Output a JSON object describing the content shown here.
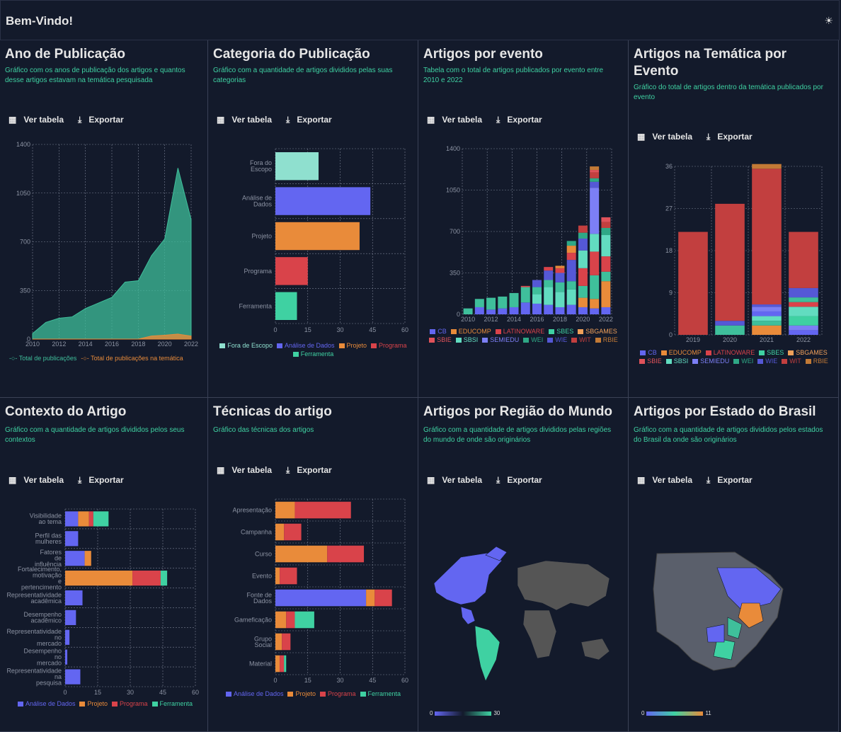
{
  "header": {
    "title": "Bem-Vindo!"
  },
  "actions": {
    "view_table": "Ver tabela",
    "export": "Exportar"
  },
  "colors": {
    "background": "#131a2b",
    "accent_desc": "#3fd1a2",
    "teal": "#3fbf9b",
    "orange": "#e98b3a",
    "blue": "#6366f1",
    "red": "#d9434a",
    "mint": "#8fe0cf"
  },
  "cards": [
    {
      "title": "Ano de Publicação",
      "desc": "Gráfico com os anos de publicação dos artigos e quantos desse artigos estavam na temática pesquisada"
    },
    {
      "title": "Categoria do Publicação",
      "desc": "Gráfico com a quantidade de artigos divididos pelas suas categorias"
    },
    {
      "title": "Artigos por evento",
      "desc": "Tabela com o total de artigos publicados por evento entre 2010 e 2022"
    },
    {
      "title": "Artigos na Temática por Evento",
      "desc": "Gráfico do total de artigos dentro da temática publicados por evento"
    },
    {
      "title": "Contexto do Artigo",
      "desc": "Gráfico com a quantidade de artigos divididos pelos seus contextos"
    },
    {
      "title": "Técnicas do artigo",
      "desc": "Gráfico das técnicas dos artigos"
    },
    {
      "title": "Artigos por Região do Mundo",
      "desc": "Gráfico com a quantidade de artigos divididos pelas regiões do mundo de onde são originários"
    },
    {
      "title": "Artigos por Estado do Brasil",
      "desc": "Gráfico com a quantidade de artigos divididos pelos estados do Brasil da onde são originários"
    }
  ],
  "maps": {
    "world_scale": [
      "0",
      "30"
    ],
    "brazil_scale": [
      "0",
      "11"
    ]
  },
  "chart_data": [
    {
      "type": "area",
      "x": [
        2010,
        2011,
        2012,
        2013,
        2014,
        2015,
        2016,
        2017,
        2018,
        2019,
        2020,
        2021,
        2022
      ],
      "x_ticks": [
        "2010",
        "2012",
        "2014",
        "2016",
        "2018",
        "2020",
        "2022"
      ],
      "y_ticks": [
        "0",
        "350",
        "700",
        "1050",
        "1400"
      ],
      "ylim": [
        0,
        1400
      ],
      "series": [
        {
          "name": "Total de publicações",
          "color": "#3fbf9b",
          "values": [
            40,
            120,
            150,
            160,
            220,
            260,
            300,
            410,
            420,
            600,
            720,
            1230,
            860
          ]
        },
        {
          "name": "Total de publicações na temática",
          "color": "#e98b3a",
          "values": [
            0,
            0,
            0,
            0,
            0,
            0,
            0,
            0,
            0,
            22,
            28,
            36,
            22
          ]
        }
      ]
    },
    {
      "type": "bar",
      "orientation": "horizontal",
      "categories": [
        "Fora do Escopo",
        "Análise de Dados",
        "Projeto",
        "Programa",
        "Ferramenta"
      ],
      "values": [
        20,
        44,
        39,
        15,
        10
      ],
      "colors": [
        "#8fe0cf",
        "#6366f1",
        "#e98b3a",
        "#d9434a",
        "#3fd1a2"
      ],
      "x_ticks": [
        "0",
        "15",
        "30",
        "45",
        "60"
      ],
      "xlim": [
        0,
        60
      ],
      "legend": [
        "Fora de Escopo",
        "Análise de Dados",
        "Projeto",
        "Programa",
        "Ferramenta"
      ]
    },
    {
      "type": "bar",
      "stacked": true,
      "categories": [
        "2010",
        "2011",
        "2012",
        "2013",
        "2014",
        "2015",
        "2016",
        "2017",
        "2018",
        "2019",
        "2020",
        "2021",
        "2022"
      ],
      "x_ticks": [
        "2010",
        "2012",
        "2014",
        "2016",
        "2018",
        "2020",
        "2022"
      ],
      "y_ticks": [
        "0",
        "350",
        "700",
        "1050",
        "1400"
      ],
      "ylim": [
        0,
        1400
      ],
      "series": [
        {
          "name": "CB",
          "color": "#6366f1",
          "values": [
            0,
            0,
            0,
            0,
            0,
            0,
            0,
            0,
            0,
            0,
            0,
            0,
            0
          ]
        },
        {
          "name": "EDUCOMP",
          "color": "#e98b3a",
          "values": [
            0,
            0,
            0,
            0,
            0,
            0,
            0,
            0,
            0,
            0,
            0,
            0,
            0
          ]
        },
        {
          "name": "LATINOWARE",
          "color": "#d9434a",
          "values": [
            0,
            0,
            0,
            0,
            0,
            0,
            0,
            0,
            0,
            0,
            0,
            0,
            0
          ]
        },
        {
          "name": "SBES",
          "color": "#3fd1a2",
          "values": [
            0,
            0,
            0,
            0,
            0,
            0,
            0,
            0,
            0,
            0,
            0,
            0,
            0
          ]
        },
        {
          "name": "SBGAMES",
          "color": "#f0a05a",
          "values": [
            0,
            0,
            0,
            0,
            0,
            0,
            0,
            0,
            0,
            0,
            0,
            0,
            0
          ]
        },
        {
          "name": "SBIE",
          "color": "#e0525a",
          "values": [
            0,
            0,
            0,
            0,
            0,
            0,
            0,
            0,
            0,
            0,
            0,
            0,
            0
          ]
        },
        {
          "name": "SBSI",
          "color": "#62dcc0",
          "values": [
            0,
            0,
            0,
            0,
            0,
            0,
            0,
            0,
            0,
            0,
            0,
            0,
            0
          ]
        },
        {
          "name": "SEMIEDU",
          "color": "#7c7ff5",
          "values": [
            0,
            0,
            0,
            0,
            0,
            0,
            0,
            0,
            0,
            0,
            0,
            0,
            0
          ]
        },
        {
          "name": "WEI",
          "color": "#2fa886",
          "values": [
            0,
            0,
            0,
            0,
            0,
            0,
            0,
            0,
            0,
            0,
            0,
            0,
            0
          ]
        },
        {
          "name": "WIE",
          "color": "#5558d6",
          "values": [
            0,
            0,
            0,
            0,
            0,
            0,
            0,
            0,
            0,
            0,
            0,
            0,
            0
          ]
        },
        {
          "name": "WIT",
          "color": "#c23f3f",
          "values": [
            0,
            0,
            0,
            0,
            0,
            0,
            0,
            0,
            0,
            0,
            0,
            0,
            0
          ]
        },
        {
          "name": "RBIE",
          "color": "#c27a36",
          "values": [
            0,
            0,
            0,
            0,
            0,
            0,
            0,
            0,
            0,
            0,
            0,
            0,
            0
          ]
        }
      ],
      "segments": [
        [
          [
            "#3fbf9b",
            50
          ]
        ],
        [
          [
            "#6366f1",
            60
          ],
          [
            "#3fbf9b",
            70
          ]
        ],
        [
          [
            "#6366f1",
            40
          ],
          [
            "#3fbf9b",
            100
          ]
        ],
        [
          [
            "#6366f1",
            50
          ],
          [
            "#3fbf9b",
            100
          ]
        ],
        [
          [
            "#6366f1",
            60
          ],
          [
            "#3fbf9b",
            120
          ]
        ],
        [
          [
            "#6366f1",
            100
          ],
          [
            "#3fbf9b",
            130
          ],
          [
            "#d9434a",
            10
          ]
        ],
        [
          [
            "#6366f1",
            90
          ],
          [
            "#62dcc0",
            80
          ],
          [
            "#3fbf9b",
            60
          ],
          [
            "#5558d6",
            60
          ]
        ],
        [
          [
            "#6366f1",
            80
          ],
          [
            "#62dcc0",
            150
          ],
          [
            "#3fbf9b",
            60
          ],
          [
            "#5558d6",
            80
          ],
          [
            "#d9434a",
            30
          ]
        ],
        [
          [
            "#6366f1",
            60
          ],
          [
            "#62dcc0",
            130
          ],
          [
            "#3fbf9b",
            80
          ],
          [
            "#5558d6",
            80
          ],
          [
            "#d9434a",
            40
          ],
          [
            "#e98b3a",
            20
          ]
        ],
        [
          [
            "#6366f1",
            80
          ],
          [
            "#62dcc0",
            130
          ],
          [
            "#3fbf9b",
            70
          ],
          [
            "#5558d6",
            180
          ],
          [
            "#d9434a",
            60
          ],
          [
            "#e98b3a",
            60
          ],
          [
            "#2fa886",
            40
          ]
        ],
        [
          [
            "#6366f1",
            60
          ],
          [
            "#e98b3a",
            80
          ],
          [
            "#3fbf9b",
            100
          ],
          [
            "#d9434a",
            150
          ],
          [
            "#62dcc0",
            150
          ],
          [
            "#5558d6",
            100
          ],
          [
            "#2fa886",
            50
          ],
          [
            "#c23f3f",
            60
          ]
        ],
        [
          [
            "#6366f1",
            50
          ],
          [
            "#e98b3a",
            80
          ],
          [
            "#3fbf9b",
            200
          ],
          [
            "#d9434a",
            200
          ],
          [
            "#62dcc0",
            150
          ],
          [
            "#7c7ff5",
            390
          ],
          [
            "#5558d6",
            50
          ],
          [
            "#2fa886",
            30
          ],
          [
            "#c23f3f",
            50
          ],
          [
            "#e0525a",
            20
          ],
          [
            "#c27a36",
            30
          ]
        ],
        [
          [
            "#6366f1",
            60
          ],
          [
            "#e98b3a",
            220
          ],
          [
            "#3fbf9b",
            80
          ],
          [
            "#d9434a",
            130
          ],
          [
            "#62dcc0",
            180
          ],
          [
            "#2fa886",
            60
          ],
          [
            "#c23f3f",
            50
          ],
          [
            "#e0525a",
            40
          ]
        ]
      ]
    },
    {
      "type": "bar",
      "stacked": true,
      "categories": [
        "2019",
        "2020",
        "2021",
        "2022"
      ],
      "y_ticks": [
        "0",
        "9",
        "18",
        "27",
        "36"
      ],
      "ylim": [
        0,
        36
      ],
      "legend": [
        "CB",
        "EDUCOMP",
        "LATINOWARE",
        "SBES",
        "SBGAMES",
        "SBIE",
        "SBSI",
        "SEMIEDU",
        "WEI",
        "WIE",
        "WIT",
        "RBIE"
      ],
      "segments": [
        [
          [
            "#c23f3f",
            22
          ]
        ],
        [
          [
            "#3fbf9b",
            2
          ],
          [
            "#5558d6",
            1
          ],
          [
            "#c23f3f",
            25
          ]
        ],
        [
          [
            "#e98b3a",
            2
          ],
          [
            "#3fbf9b",
            1
          ],
          [
            "#62dcc0",
            1
          ],
          [
            "#6366f1",
            1
          ],
          [
            "#7c7ff5",
            1
          ],
          [
            "#5558d6",
            0.5
          ],
          [
            "#c23f3f",
            29
          ],
          [
            "#c27a36",
            1
          ]
        ],
        [
          [
            "#6366f1",
            1
          ],
          [
            "#7c7ff5",
            1
          ],
          [
            "#3fd1a2",
            2
          ],
          [
            "#62dcc0",
            2
          ],
          [
            "#d9434a",
            1
          ],
          [
            "#3fbf9b",
            1
          ],
          [
            "#5558d6",
            2
          ],
          [
            "#c23f3f",
            12
          ]
        ]
      ]
    },
    {
      "type": "bar",
      "orientation": "horizontal",
      "stacked": true,
      "categories": [
        [
          "Visibilidade",
          "ao tema"
        ],
        [
          "Perfil das",
          "mulheres"
        ],
        [
          "Fatores",
          "de",
          "influência"
        ],
        [
          "Fortalecimento,",
          "motivação",
          "e",
          "pertencimento"
        ],
        [
          "Representatividade",
          "acadêmica"
        ],
        [
          "Desempenho",
          "acadêmico"
        ],
        [
          "Representatividade",
          "no",
          "mercado"
        ],
        [
          "Desempenho",
          "no",
          "mercado"
        ],
        [
          "Representatividade",
          "na",
          "pesquisa"
        ]
      ],
      "x_ticks": [
        "0",
        "15",
        "30",
        "45",
        "60"
      ],
      "xlim": [
        0,
        60
      ],
      "legend": [
        [
          "Análise de Dados",
          "#6366f1"
        ],
        [
          "Projeto",
          "#e98b3a"
        ],
        [
          "Programa",
          "#d9434a"
        ],
        [
          "Ferramenta",
          "#3fd1a2"
        ]
      ],
      "segments": [
        [
          [
            "#6366f1",
            6
          ],
          [
            "#e98b3a",
            5
          ],
          [
            "#d9434a",
            2
          ],
          [
            "#3fd1a2",
            7
          ]
        ],
        [
          [
            "#6366f1",
            6
          ]
        ],
        [
          [
            "#6366f1",
            9
          ],
          [
            "#e98b3a",
            3
          ]
        ],
        [
          [
            "#e98b3a",
            31
          ],
          [
            "#d9434a",
            13
          ],
          [
            "#3fd1a2",
            3
          ]
        ],
        [
          [
            "#6366f1",
            8
          ]
        ],
        [
          [
            "#6366f1",
            5
          ]
        ],
        [
          [
            "#6366f1",
            2
          ]
        ],
        [
          [
            "#6366f1",
            1
          ]
        ],
        [
          [
            "#6366f1",
            7
          ]
        ]
      ]
    },
    {
      "type": "bar",
      "orientation": "horizontal",
      "stacked": true,
      "categories": [
        [
          "Apresentação"
        ],
        [
          "Campanha"
        ],
        [
          "Curso"
        ],
        [
          "Evento"
        ],
        [
          "Fonte de",
          "Dados"
        ],
        [
          "Gameficação"
        ],
        [
          "Grupo",
          "Social"
        ],
        [
          "Material"
        ]
      ],
      "x_ticks": [
        "0",
        "15",
        "30",
        "45",
        "60"
      ],
      "xlim": [
        0,
        60
      ],
      "legend": [
        [
          "Análise de Dados",
          "#6366f1"
        ],
        [
          "Projeto",
          "#e98b3a"
        ],
        [
          "Programa",
          "#d9434a"
        ],
        [
          "Ferramenta",
          "#3fd1a2"
        ]
      ],
      "segments": [
        [
          [
            "#e98b3a",
            9
          ],
          [
            "#d9434a",
            26
          ]
        ],
        [
          [
            "#e98b3a",
            4
          ],
          [
            "#d9434a",
            8
          ]
        ],
        [
          [
            "#e98b3a",
            24
          ],
          [
            "#d9434a",
            17
          ]
        ],
        [
          [
            "#e98b3a",
            2
          ],
          [
            "#d9434a",
            8
          ]
        ],
        [
          [
            "#6366f1",
            42
          ],
          [
            "#e98b3a",
            4
          ],
          [
            "#d9434a",
            8
          ]
        ],
        [
          [
            "#e98b3a",
            5
          ],
          [
            "#d9434a",
            4
          ],
          [
            "#3fd1a2",
            9
          ]
        ],
        [
          [
            "#e98b3a",
            3
          ],
          [
            "#d9434a",
            4
          ]
        ],
        [
          [
            "#e98b3a",
            2
          ],
          [
            "#d9434a",
            2
          ],
          [
            "#3fd1a2",
            1
          ]
        ]
      ]
    }
  ]
}
